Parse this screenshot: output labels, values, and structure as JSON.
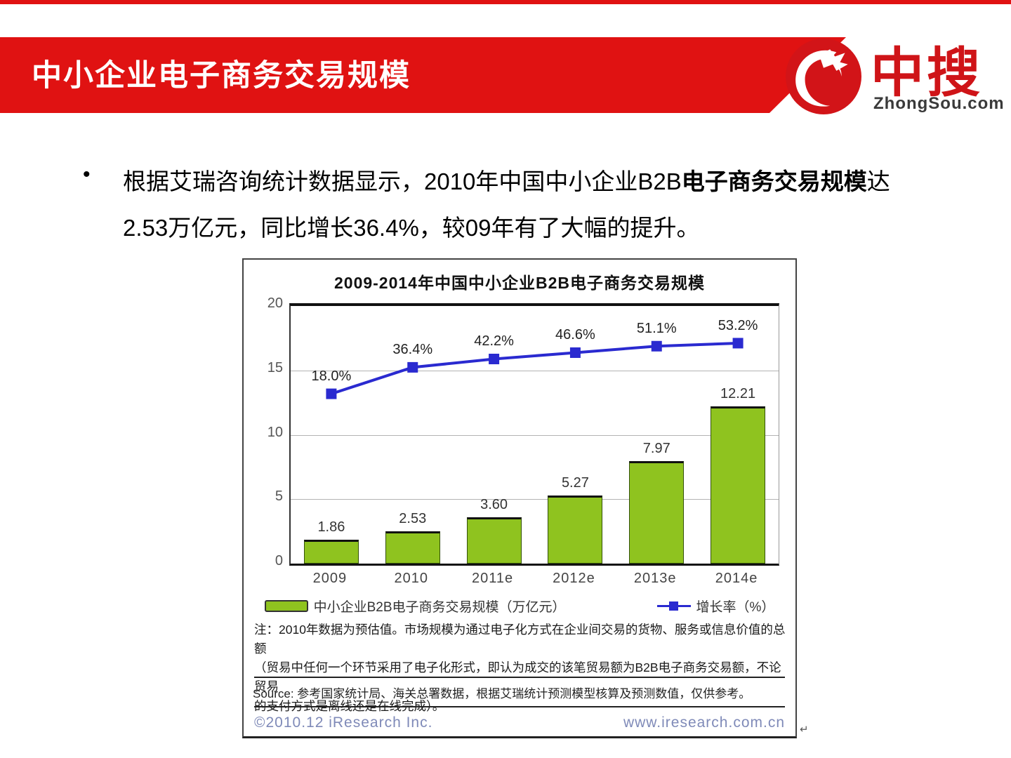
{
  "slide": {
    "title": "中小企业电子商务交易规模",
    "logo": {
      "brand": "中搜",
      "domain": "ZhongSou.com"
    },
    "bullet": {
      "marker": "•",
      "text_prefix": "根据艾瑞咨询统计数据显示，2010年中国中小企业B2B",
      "text_bold": "电子商务交易规模",
      "text_suffix": "达2.53万亿元，同比增长36.4%，较09年有了大幅的提升。"
    },
    "colors": {
      "accent_red": "#e01212",
      "bar_green": "#8fc31f",
      "line_blue": "#2a2ad0",
      "footer_blue": "#7f8ab8"
    }
  },
  "chart_data": {
    "type": "bar+line",
    "title": "2009-2014年中国中小企业B2B电子商务交易规模",
    "categories": [
      "2009",
      "2010",
      "2011e",
      "2012e",
      "2013e",
      "2014e"
    ],
    "series": [
      {
        "name": "中小企业B2B电子商务交易规模（万亿元）",
        "type": "bar",
        "values": [
          1.86,
          2.53,
          3.6,
          5.27,
          7.97,
          12.21
        ],
        "labels": [
          "1.86",
          "2.53",
          "3.60",
          "5.27",
          "7.97",
          "12.21"
        ],
        "color": "#8fc31f"
      },
      {
        "name": "增长率（%）",
        "type": "line",
        "values": [
          18.0,
          36.4,
          42.2,
          46.6,
          51.1,
          53.2
        ],
        "labels": [
          "18.0%",
          "36.4%",
          "42.2%",
          "46.6%",
          "51.1%",
          "53.2%"
        ],
        "color": "#2a2ad0"
      }
    ],
    "ylim": [
      0,
      20
    ],
    "yticks": [
      0,
      5,
      10,
      15,
      20
    ],
    "grid": true,
    "legend_position": "bottom",
    "annotations": {
      "note_lines": [
        "注：2010年数据为预估值。市场规模为通过电子化方式在企业间交易的货物、服务或信息价值的总额",
        "（贸易中任何一个环节采用了电子化形式，即认为成交的该笔贸易额为B2B电子商务交易额，不论贸易",
        "的支付方式是离线还是在线完成）。"
      ],
      "source": "Source: 参考国家统计局、海关总署数据，根据艾瑞统计预测模型核算及预测数值，仅供参考。",
      "copyright": "©2010.12 iResearch Inc.",
      "website": "www.iresearch.com.cn"
    }
  },
  "artifacts": {
    "paragraph_mark": "↵"
  }
}
